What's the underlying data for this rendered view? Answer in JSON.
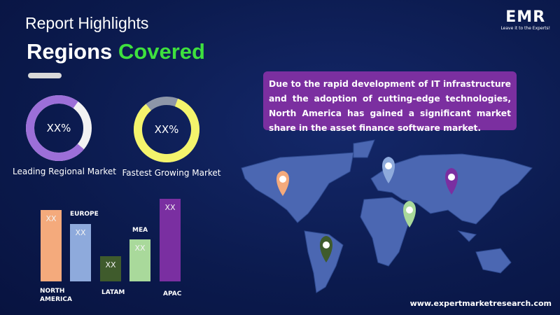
{
  "header": {
    "title": "Report Highlights",
    "subtitle_first": "Regions",
    "subtitle_second": "Covered"
  },
  "logo": {
    "name": "EMR",
    "tagline": "Leave it to the Experts!"
  },
  "metrics": [
    {
      "value": "XX%",
      "label": "Leading Regional Market"
    },
    {
      "value": "XX%",
      "label": "Fastest Growing Market"
    }
  ],
  "bars": [
    {
      "label": "NORTH AMERICA",
      "value": "XX"
    },
    {
      "label": "EUROPE",
      "value": "XX"
    },
    {
      "label": "LATAM",
      "value": "XX"
    },
    {
      "label": "MEA",
      "value": "XX"
    },
    {
      "label": "APAC",
      "value": "XX"
    }
  ],
  "highlight": "Due to the rapid development of IT infrastructure and the adoption of cutting-edge technologies, North America has gained a significant market share in the asset finance software market.",
  "footer": {
    "website": "www.expertmarketresearch.com"
  }
}
